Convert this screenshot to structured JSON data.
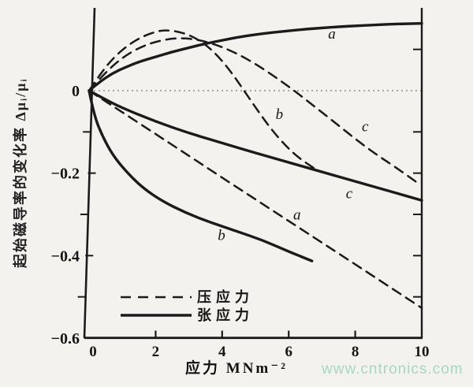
{
  "watermark": {
    "text": "www.cntronics.com"
  },
  "chart_data": {
    "type": "line",
    "title": "",
    "xlabel": "应力 MNm⁻²",
    "ylabel": "起始磁导率的变化率 Δμᵢ/μᵢ",
    "xlim": [
      0,
      10
    ],
    "ylim": [
      -0.6,
      0.2
    ],
    "grid": false,
    "zero_line": true,
    "x_ticks": [
      {
        "value": 0,
        "label": "0"
      },
      {
        "value": 2,
        "label": "2"
      },
      {
        "value": 4,
        "label": "4"
      },
      {
        "value": 6,
        "label": "6"
      },
      {
        "value": 8,
        "label": "8"
      },
      {
        "value": 10,
        "label": "10"
      }
    ],
    "y_ticks": [
      {
        "value": 0,
        "label": "0"
      },
      {
        "value": -0.2,
        "label": "−0.2"
      },
      {
        "value": -0.4,
        "label": "−0.4"
      },
      {
        "value": -0.6,
        "label": "−0.6"
      }
    ],
    "y_minor_ticks": [
      -0.1,
      -0.3,
      -0.5
    ],
    "right_axis_ticks": [
      0.1,
      -0.1,
      -0.2,
      -0.3,
      -0.4,
      -0.5
    ],
    "legend": {
      "position": "inside-bottom-left",
      "items": [
        {
          "label": "压应力",
          "style": "dashed"
        },
        {
          "label": "张应力",
          "style": "solid"
        }
      ]
    },
    "line_color": "#1b1b1b",
    "series": [
      {
        "name": "curve-a-tensile",
        "label": "a",
        "stress": "张应力",
        "style": "solid",
        "points": [
          [
            0,
            0
          ],
          [
            0.3,
            0.02
          ],
          [
            0.7,
            0.042
          ],
          [
            1.1,
            0.057
          ],
          [
            1.5,
            0.07
          ],
          [
            2,
            0.082
          ],
          [
            2.5,
            0.094
          ],
          [
            3,
            0.104
          ],
          [
            3.5,
            0.114
          ],
          [
            4,
            0.122
          ],
          [
            4.5,
            0.13
          ],
          [
            5,
            0.136
          ],
          [
            5.5,
            0.141
          ],
          [
            6,
            0.145
          ],
          [
            6.5,
            0.149
          ],
          [
            7,
            0.152
          ],
          [
            7.5,
            0.155
          ],
          [
            8,
            0.157
          ],
          [
            8.5,
            0.159
          ],
          [
            9,
            0.161
          ],
          [
            9.5,
            0.162
          ],
          [
            10,
            0.163
          ]
        ],
        "label_pos": [
          7.3,
          0.137
        ]
      },
      {
        "name": "curve-b-compressive",
        "label": "b",
        "stress": "压应力",
        "style": "dashed",
        "points": [
          [
            0,
            0
          ],
          [
            0.4,
            0.048
          ],
          [
            0.8,
            0.085
          ],
          [
            1.2,
            0.112
          ],
          [
            1.6,
            0.131
          ],
          [
            2,
            0.143
          ],
          [
            2.3,
            0.147
          ],
          [
            2.7,
            0.143
          ],
          [
            3.1,
            0.132
          ],
          [
            3.5,
            0.112
          ],
          [
            3.9,
            0.082
          ],
          [
            4.3,
            0.042
          ],
          [
            4.7,
            -0.005
          ],
          [
            5.1,
            -0.052
          ],
          [
            5.5,
            -0.096
          ],
          [
            5.9,
            -0.133
          ],
          [
            6.3,
            -0.163
          ],
          [
            6.8,
            -0.19
          ]
        ],
        "label_pos": [
          5.72,
          -0.058
        ]
      },
      {
        "name": "curve-c-compressive",
        "label": "c",
        "stress": "压应力",
        "style": "dashed",
        "points": [
          [
            0,
            0
          ],
          [
            0.5,
            0.045
          ],
          [
            1,
            0.08
          ],
          [
            1.5,
            0.104
          ],
          [
            2,
            0.119
          ],
          [
            2.6,
            0.128
          ],
          [
            3.2,
            0.125
          ],
          [
            3.8,
            0.112
          ],
          [
            4.4,
            0.092
          ],
          [
            5,
            0.065
          ],
          [
            5.6,
            0.033
          ],
          [
            6.2,
            -0.002
          ],
          [
            6.8,
            -0.04
          ],
          [
            7.4,
            -0.078
          ],
          [
            8,
            -0.117
          ],
          [
            8.6,
            -0.153
          ],
          [
            9.2,
            -0.185
          ],
          [
            9.9,
            -0.225
          ]
        ],
        "label_pos": [
          8.3,
          -0.088
        ]
      },
      {
        "name": "curve-a-compressive",
        "label": "a",
        "stress": "压应力",
        "style": "dashed",
        "points": [
          [
            0,
            0
          ],
          [
            2,
            -0.105
          ],
          [
            4,
            -0.211
          ],
          [
            6,
            -0.316
          ],
          [
            8,
            -0.421
          ],
          [
            10,
            -0.527
          ]
        ],
        "label_pos": [
          6.25,
          -0.302
        ]
      },
      {
        "name": "curve-c-tensile",
        "label": "c",
        "stress": "张应力",
        "style": "solid",
        "points": [
          [
            0,
            0
          ],
          [
            0.5,
            -0.022
          ],
          [
            1,
            -0.042
          ],
          [
            2,
            -0.075
          ],
          [
            3,
            -0.103
          ],
          [
            4,
            -0.127
          ],
          [
            5,
            -0.151
          ],
          [
            6,
            -0.174
          ],
          [
            7,
            -0.197
          ],
          [
            8,
            -0.22
          ],
          [
            9,
            -0.243
          ],
          [
            10,
            -0.266
          ]
        ],
        "label_pos": [
          7.82,
          -0.25
        ]
      },
      {
        "name": "curve-b-tensile",
        "label": "b",
        "stress": "张应力",
        "style": "solid",
        "points": [
          [
            0,
            0
          ],
          [
            0.15,
            -0.06
          ],
          [
            0.4,
            -0.11
          ],
          [
            0.7,
            -0.155
          ],
          [
            1.1,
            -0.195
          ],
          [
            1.6,
            -0.235
          ],
          [
            2.2,
            -0.268
          ],
          [
            2.9,
            -0.296
          ],
          [
            3.6,
            -0.318
          ],
          [
            4.4,
            -0.34
          ],
          [
            5.2,
            -0.362
          ],
          [
            6,
            -0.39
          ],
          [
            6.7,
            -0.413
          ]
        ],
        "label_pos": [
          3.98,
          -0.352
        ]
      }
    ]
  }
}
